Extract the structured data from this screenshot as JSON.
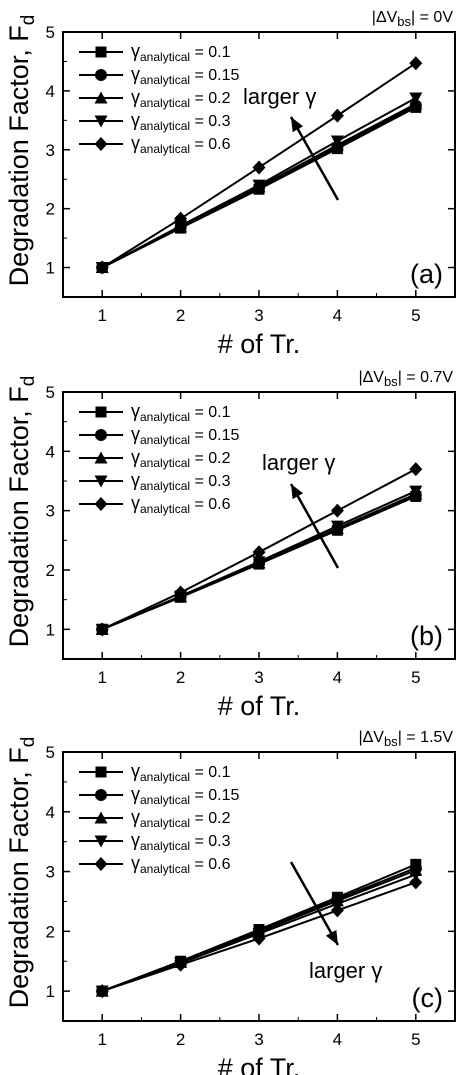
{
  "chart_data": [
    {
      "type": "line",
      "panel_label": "(a)",
      "condition": "|ΔVbs| = 0V",
      "xlabel": "# of Tr.",
      "ylabel": "Degradation Factor, Fd",
      "xlim": [
        0.5,
        5.5
      ],
      "ylim": [
        0.5,
        5
      ],
      "x": [
        1,
        2,
        3,
        4,
        5
      ],
      "xticks": [
        "1",
        "2",
        "3",
        "4",
        "5"
      ],
      "yticks": [
        "1",
        "2",
        "3",
        "4",
        "5"
      ],
      "series": [
        {
          "name": "γanalytical = 0.1",
          "marker": "square",
          "values": [
            1,
            1.67,
            2.33,
            3.02,
            3.72
          ]
        },
        {
          "name": "γanalytical = 0.15",
          "marker": "circle",
          "values": [
            1,
            1.68,
            2.35,
            3.05,
            3.75
          ]
        },
        {
          "name": "γanalytical = 0.2",
          "marker": "triangle-up",
          "values": [
            1,
            1.69,
            2.37,
            3.08,
            3.78
          ]
        },
        {
          "name": "γanalytical = 0.3",
          "marker": "triangle-down",
          "values": [
            1,
            1.71,
            2.4,
            3.15,
            3.88
          ]
        },
        {
          "name": "γanalytical = 0.6",
          "marker": "diamond",
          "values": [
            1,
            1.83,
            2.7,
            3.58,
            4.47
          ]
        }
      ],
      "annotation": {
        "text": "larger γ",
        "direction": "up"
      },
      "legend_position": "top-left"
    },
    {
      "type": "line",
      "panel_label": "(b)",
      "condition": "|ΔVbs| = 0.7V",
      "xlabel": "# of Tr.",
      "ylabel": "Degradation Factor, Fd",
      "xlim": [
        0.5,
        5.5
      ],
      "ylim": [
        0.5,
        5
      ],
      "x": [
        1,
        2,
        3,
        4,
        5
      ],
      "xticks": [
        "1",
        "2",
        "3",
        "4",
        "5"
      ],
      "yticks": [
        "1",
        "2",
        "3",
        "4",
        "5"
      ],
      "series": [
        {
          "name": "γanalytical = 0.1",
          "marker": "square",
          "values": [
            1,
            1.54,
            2.1,
            2.67,
            3.24
          ]
        },
        {
          "name": "γanalytical = 0.15",
          "marker": "circle",
          "values": [
            1,
            1.55,
            2.11,
            2.69,
            3.26
          ]
        },
        {
          "name": "γanalytical = 0.2",
          "marker": "triangle-up",
          "values": [
            1,
            1.55,
            2.12,
            2.7,
            3.28
          ]
        },
        {
          "name": "γanalytical = 0.3",
          "marker": "triangle-down",
          "values": [
            1,
            1.56,
            2.14,
            2.74,
            3.33
          ]
        },
        {
          "name": "γanalytical = 0.6",
          "marker": "diamond",
          "values": [
            1,
            1.62,
            2.3,
            3.0,
            3.7
          ]
        }
      ],
      "annotation": {
        "text": "larger γ",
        "direction": "up"
      },
      "legend_position": "top-left"
    },
    {
      "type": "line",
      "panel_label": "(c)",
      "condition": "|ΔVbs| = 1.5V",
      "xlabel": "# of Tr.",
      "ylabel": "Degradation Factor, Fd",
      "xlim": [
        0.5,
        5.5
      ],
      "ylim": [
        0.5,
        5
      ],
      "x": [
        1,
        2,
        3,
        4,
        5
      ],
      "xticks": [
        "1",
        "2",
        "3",
        "4",
        "5"
      ],
      "yticks": [
        "1",
        "2",
        "3",
        "4",
        "5"
      ],
      "series": [
        {
          "name": "γanalytical = 0.1",
          "marker": "square",
          "values": [
            1,
            1.5,
            2.03,
            2.57,
            3.12
          ]
        },
        {
          "name": "γanalytical = 0.15",
          "marker": "circle",
          "values": [
            1,
            1.49,
            2.01,
            2.54,
            3.06
          ]
        },
        {
          "name": "γanalytical = 0.2",
          "marker": "triangle-up",
          "values": [
            1,
            1.48,
            1.99,
            2.51,
            3.02
          ]
        },
        {
          "name": "γanalytical = 0.3",
          "marker": "triangle-down",
          "values": [
            1,
            1.47,
            1.96,
            2.46,
            2.95
          ]
        },
        {
          "name": "γanalytical = 0.6",
          "marker": "diamond",
          "values": [
            1,
            1.44,
            1.88,
            2.35,
            2.82
          ]
        }
      ],
      "annotation": {
        "text": "larger γ",
        "direction": "down"
      },
      "legend_position": "top-left"
    }
  ]
}
